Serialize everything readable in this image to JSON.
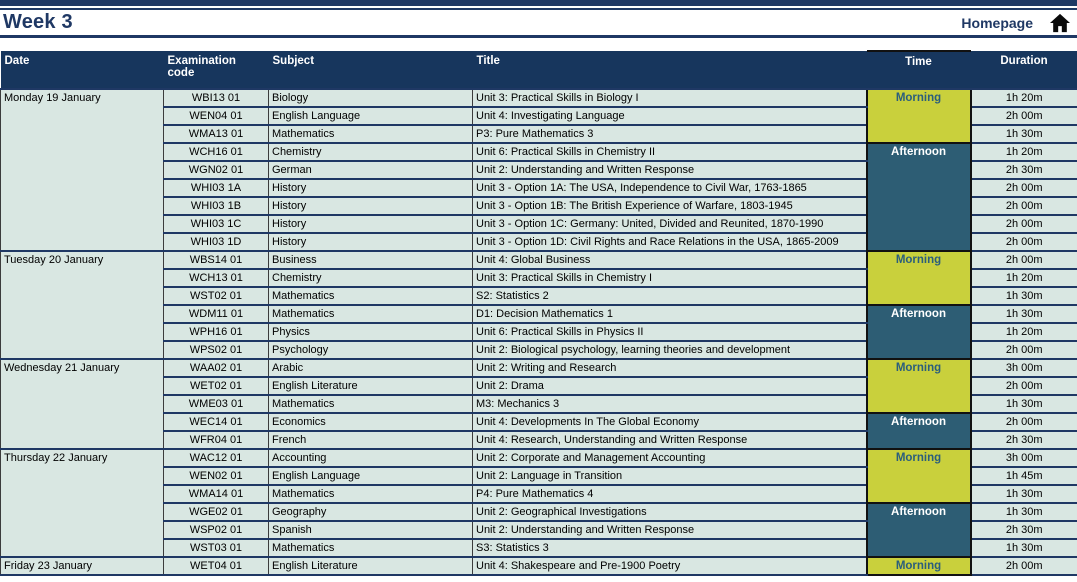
{
  "page": {
    "title": "Week 3",
    "homepage_label": "Homepage"
  },
  "colors": {
    "navy": "#1f3864",
    "header_bg": "#17365d",
    "row_bg": "#d9e7e2",
    "morning_bg": "#c9d03c",
    "morning_text": "#2b5e7c",
    "afternoon_bg": "#2d5d74",
    "afternoon_text": "#ffffff",
    "vline": "#3c3c3c",
    "black": "#111111"
  },
  "table": {
    "headers": [
      "Date",
      "Examination code",
      "Subject",
      "Title",
      "Time",
      "Duration"
    ],
    "groups": [
      {
        "date": "Monday 19 January",
        "sessions": [
          {
            "time": "Morning",
            "rows": [
              {
                "code": "WBI13 01",
                "subject": "Biology",
                "title": "Unit 3: Practical Skills in Biology I",
                "duration": "1h 20m"
              },
              {
                "code": "WEN04 01",
                "subject": "English Language",
                "title": "Unit 4: Investigating Language",
                "duration": "2h 00m"
              },
              {
                "code": "WMA13 01",
                "subject": "Mathematics",
                "title": "P3: Pure Mathematics 3",
                "duration": "1h 30m"
              }
            ]
          },
          {
            "time": "Afternoon",
            "rows": [
              {
                "code": "WCH16 01",
                "subject": "Chemistry",
                "title": "Unit 6: Practical Skills in Chemistry II",
                "duration": "1h 20m"
              },
              {
                "code": "WGN02 01",
                "subject": "German",
                "title": "Unit 2: Understanding and Written Response",
                "duration": "2h 30m"
              },
              {
                "code": "WHI03 1A",
                "subject": "History",
                "title": "Unit 3 - Option 1A: The USA, Independence to Civil War, 1763-1865",
                "duration": "2h 00m"
              },
              {
                "code": "WHI03 1B",
                "subject": "History",
                "title": "Unit 3 - Option 1B: The British Experience of Warfare, 1803-1945",
                "duration": "2h 00m"
              },
              {
                "code": "WHI03 1C",
                "subject": "History",
                "title": "Unit 3 - Option 1C: Germany: United, Divided and Reunited, 1870-1990",
                "duration": "2h 00m"
              },
              {
                "code": "WHI03 1D",
                "subject": "History",
                "title": "Unit 3 - Option 1D: Civil Rights and Race Relations in the USA, 1865-2009",
                "duration": "2h 00m"
              }
            ]
          }
        ]
      },
      {
        "date": "Tuesday 20 January",
        "sessions": [
          {
            "time": "Morning",
            "rows": [
              {
                "code": "WBS14 01",
                "subject": "Business",
                "title": "Unit 4: Global Business",
                "duration": "2h 00m"
              },
              {
                "code": "WCH13 01",
                "subject": "Chemistry",
                "title": "Unit 3: Practical Skills in Chemistry I",
                "duration": "1h 20m"
              },
              {
                "code": "WST02 01",
                "subject": "Mathematics",
                "title": "S2: Statistics 2",
                "duration": "1h 30m"
              }
            ]
          },
          {
            "time": "Afternoon",
            "rows": [
              {
                "code": "WDM11 01",
                "subject": "Mathematics",
                "title": "D1: Decision Mathematics 1",
                "duration": "1h 30m"
              },
              {
                "code": "WPH16 01",
                "subject": "Physics",
                "title": "Unit 6: Practical Skills in Physics II",
                "duration": "1h 20m"
              },
              {
                "code": "WPS02 01",
                "subject": "Psychology",
                "title": "Unit 2: Biological psychology, learning theories and development",
                "duration": "2h 00m"
              }
            ]
          }
        ]
      },
      {
        "date": "Wednesday 21 January",
        "sessions": [
          {
            "time": "Morning",
            "rows": [
              {
                "code": "WAA02 01",
                "subject": "Arabic",
                "title": "Unit 2: Writing and Research",
                "duration": "3h 00m"
              },
              {
                "code": "WET02 01",
                "subject": "English Literature",
                "title": "Unit 2: Drama",
                "duration": "2h 00m"
              },
              {
                "code": "WME03 01",
                "subject": "Mathematics",
                "title": "M3: Mechanics 3",
                "duration": "1h 30m"
              }
            ]
          },
          {
            "time": "Afternoon",
            "rows": [
              {
                "code": "WEC14 01",
                "subject": "Economics",
                "title": "Unit 4: Developments In The Global Economy",
                "duration": "2h 00m"
              },
              {
                "code": "WFR04 01",
                "subject": "French",
                "title": "Unit 4: Research, Understanding and Written Response",
                "duration": "2h 30m"
              }
            ]
          }
        ]
      },
      {
        "date": "Thursday 22 January",
        "sessions": [
          {
            "time": "Morning",
            "rows": [
              {
                "code": "WAC12 01",
                "subject": "Accounting",
                "title": "Unit 2: Corporate and Management Accounting",
                "duration": "3h 00m"
              },
              {
                "code": "WEN02 01",
                "subject": "English Language",
                "title": "Unit 2: Language in Transition",
                "duration": "1h 45m"
              },
              {
                "code": "WMA14 01",
                "subject": "Mathematics",
                "title": "P4: Pure Mathematics 4",
                "duration": "1h 30m"
              }
            ]
          },
          {
            "time": "Afternoon",
            "rows": [
              {
                "code": "WGE02 01",
                "subject": "Geography",
                "title": "Unit 2: Geographical Investigations",
                "duration": "1h 30m"
              },
              {
                "code": "WSP02 01",
                "subject": "Spanish",
                "title": "Unit 2: Understanding and Written Response",
                "duration": "2h 30m"
              },
              {
                "code": "WST03 01",
                "subject": "Mathematics",
                "title": "S3: Statistics 3",
                "duration": "1h 30m"
              }
            ]
          }
        ]
      },
      {
        "date": "Friday 23 January",
        "sessions": [
          {
            "time": "Morning",
            "rows": [
              {
                "code": "WET04 01",
                "subject": "English Literature",
                "title": "Unit 4: Shakespeare and Pre-1900 Poetry",
                "duration": "2h 00m"
              }
            ]
          }
        ]
      }
    ]
  }
}
